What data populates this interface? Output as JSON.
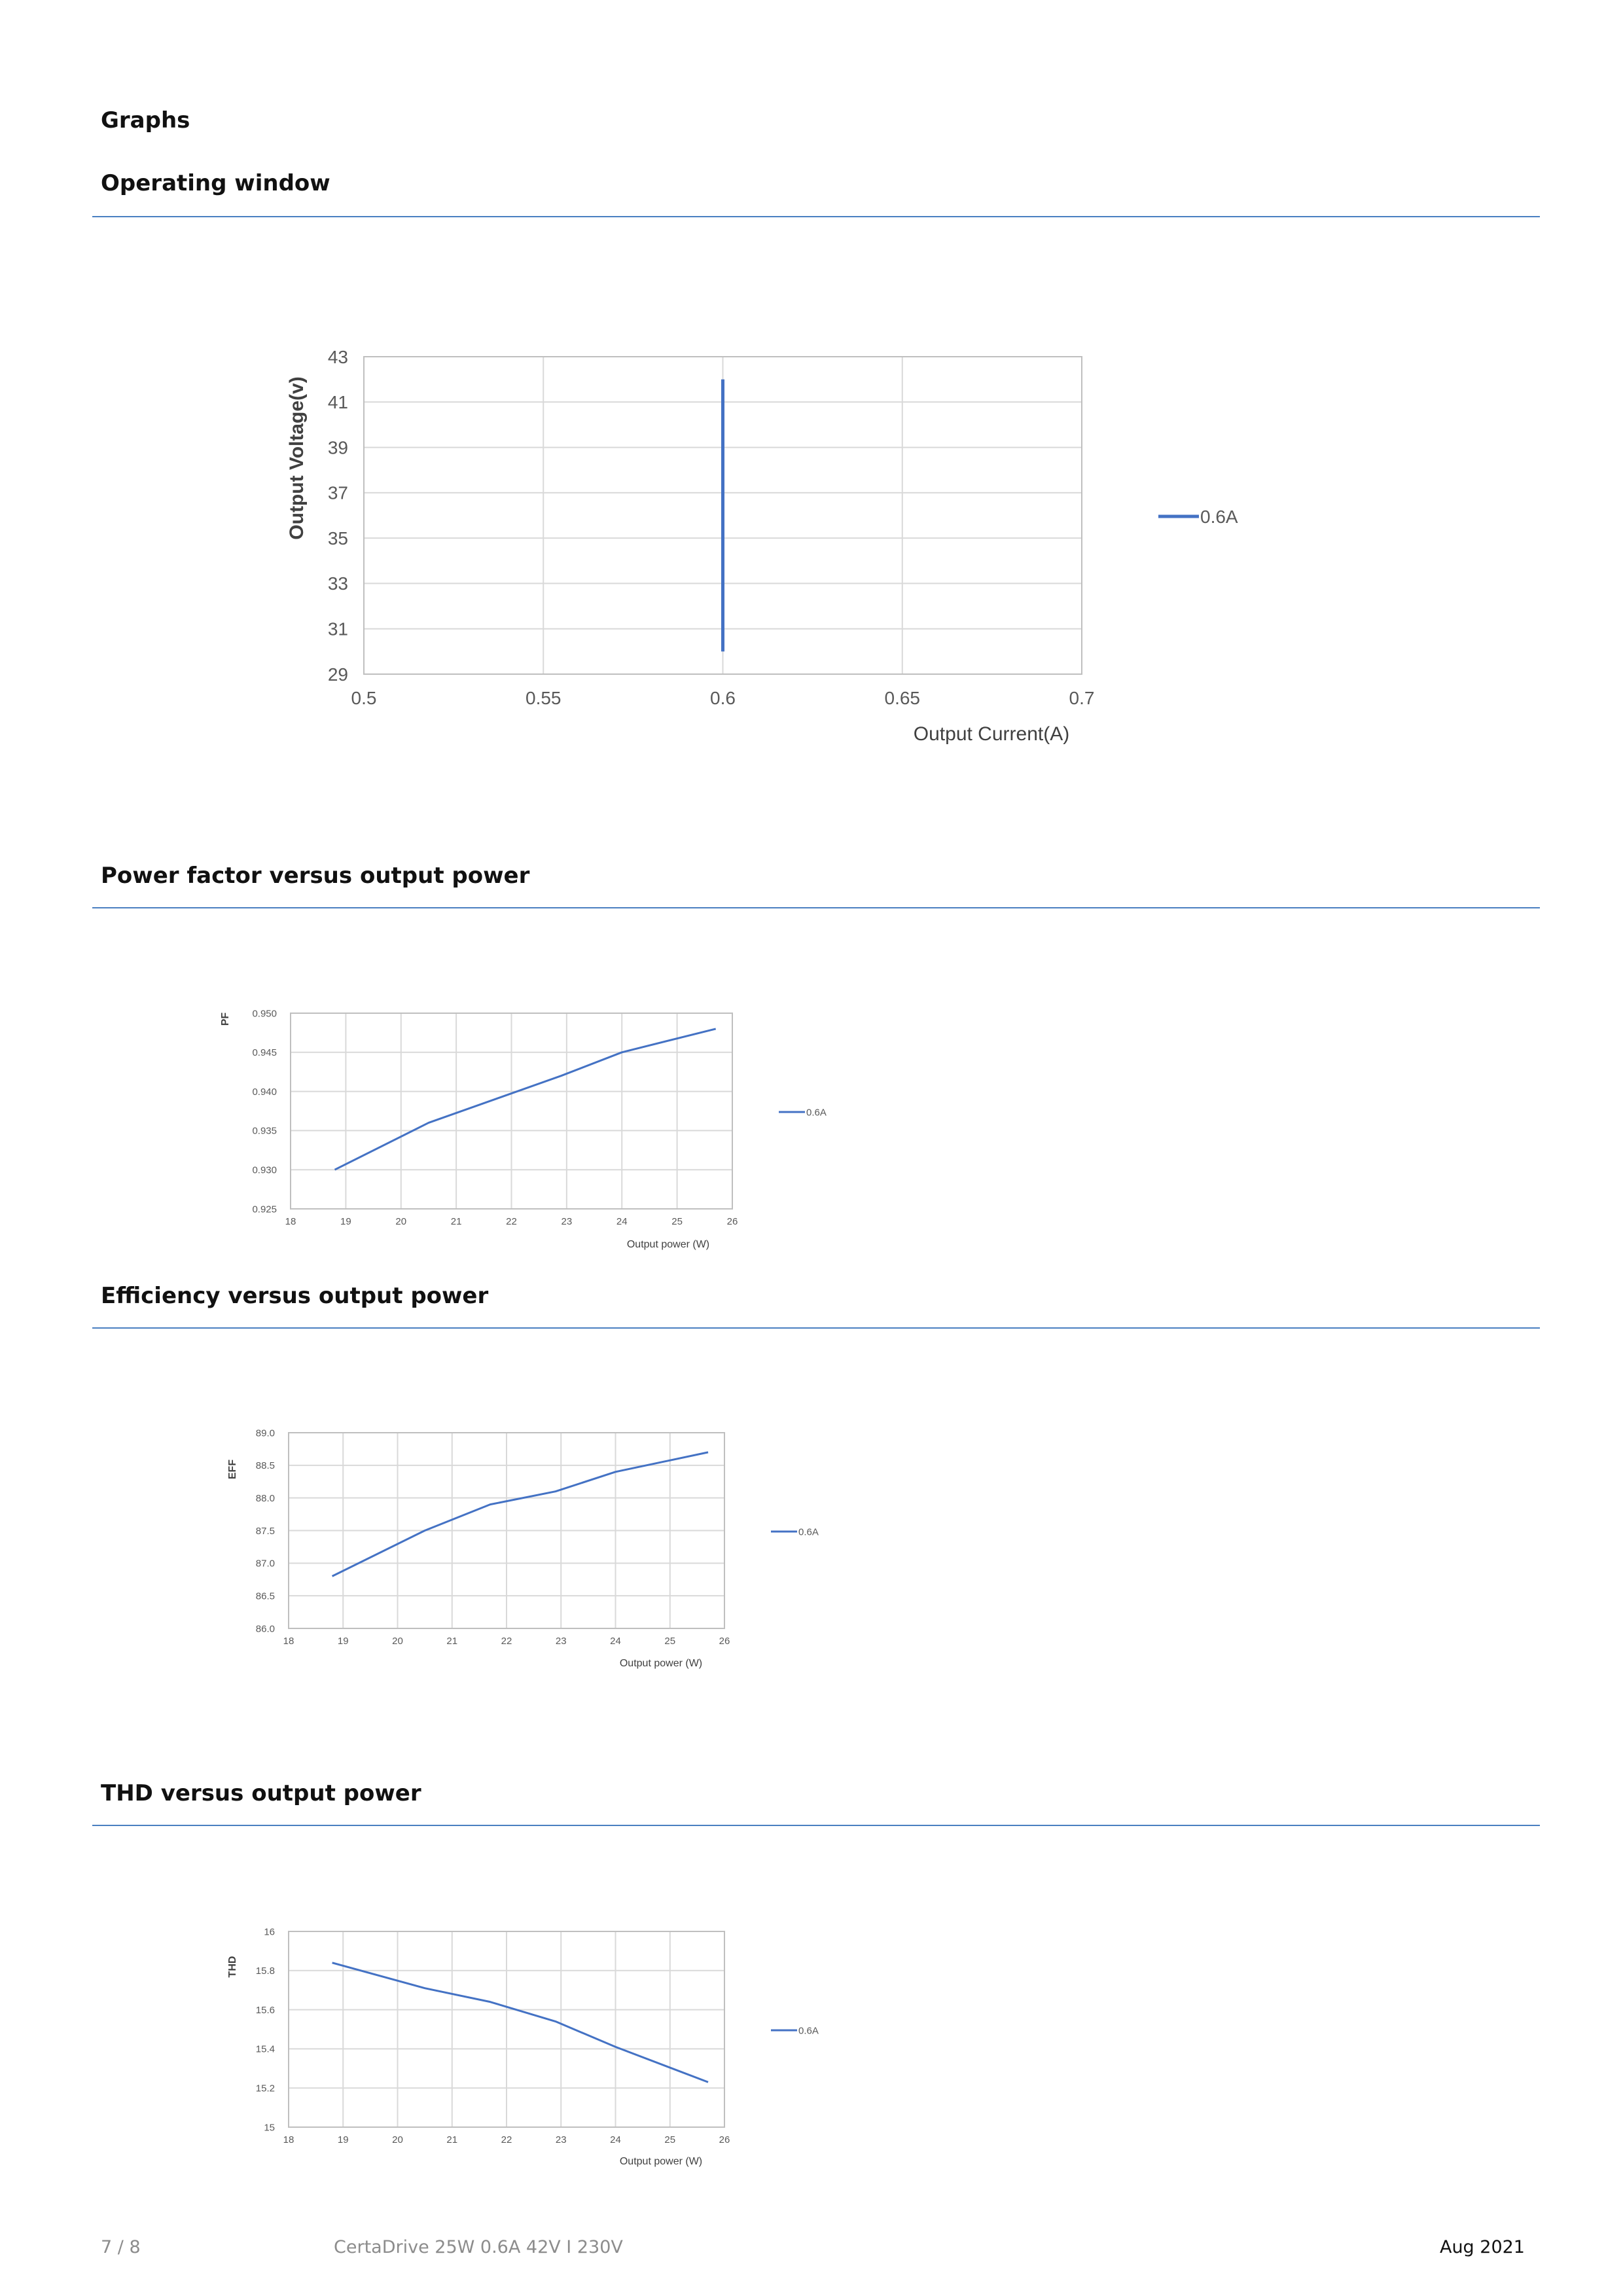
{
  "page": {
    "section_title": "Graphs",
    "headings": {
      "operating_window": "Operating window",
      "power_factor": "Power factor versus output power",
      "efficiency": "Efficiency versus output power",
      "thd": "THD versus output power"
    }
  },
  "colors": {
    "series": "#4472c4",
    "rule": "#4a7fc1"
  },
  "chart_data": [
    {
      "type": "line",
      "title": "",
      "xlabel": "Output Current(A)",
      "ylabel": "Output Voltage(v)",
      "xlim": [
        0.5,
        0.7
      ],
      "ylim": [
        29,
        43
      ],
      "x_ticks": [
        "0.5",
        "0.55",
        "0.6",
        "0.65",
        "0.7"
      ],
      "y_ticks": [
        "29",
        "31",
        "33",
        "35",
        "37",
        "39",
        "41",
        "43"
      ],
      "grid": true,
      "legend": "right",
      "series": [
        {
          "name": "0.6A",
          "x": [
            0.6,
            0.6
          ],
          "y": [
            30,
            42
          ]
        }
      ]
    },
    {
      "type": "line",
      "title": "",
      "xlabel": "Output power (W)",
      "ylabel": "PF",
      "xlim": [
        18,
        26
      ],
      "ylim": [
        0.925,
        0.95
      ],
      "x_ticks": [
        "18",
        "19",
        "20",
        "21",
        "22",
        "23",
        "24",
        "25",
        "26"
      ],
      "y_ticks": [
        "0.925",
        "0.930",
        "0.935",
        "0.940",
        "0.945",
        "0.950"
      ],
      "grid": true,
      "legend": "right",
      "series": [
        {
          "name": "0.6A",
          "x": [
            18.8,
            20.5,
            21.7,
            22.9,
            24.0,
            25.7
          ],
          "y": [
            0.93,
            0.936,
            0.939,
            0.942,
            0.945,
            0.948
          ]
        }
      ]
    },
    {
      "type": "line",
      "title": "",
      "xlabel": "Output power (W)",
      "ylabel": "EFF",
      "xlim": [
        18,
        26
      ],
      "ylim": [
        86.0,
        89.0
      ],
      "x_ticks": [
        "18",
        "19",
        "20",
        "21",
        "22",
        "23",
        "24",
        "25",
        "26"
      ],
      "y_ticks": [
        "86.0",
        "86.5",
        "87.0",
        "87.5",
        "88.0",
        "88.5",
        "89.0"
      ],
      "grid": true,
      "legend": "right",
      "series": [
        {
          "name": "0.6A",
          "x": [
            18.8,
            20.5,
            21.7,
            22.9,
            24.0,
            25.7
          ],
          "y": [
            86.8,
            87.5,
            87.9,
            88.1,
            88.4,
            88.7
          ]
        }
      ]
    },
    {
      "type": "line",
      "title": "",
      "xlabel": "Output power (W)",
      "ylabel": "THD",
      "xlim": [
        18,
        26
      ],
      "ylim": [
        15,
        16
      ],
      "x_ticks": [
        "18",
        "19",
        "20",
        "21",
        "22",
        "23",
        "24",
        "25",
        "26"
      ],
      "y_ticks": [
        "15",
        "15.2",
        "15.4",
        "15.6",
        "15.8",
        "16"
      ],
      "grid": true,
      "legend": "right",
      "series": [
        {
          "name": "0.6A",
          "x": [
            18.8,
            20.5,
            21.7,
            22.9,
            24.0,
            25.7
          ],
          "y": [
            15.84,
            15.71,
            15.64,
            15.54,
            15.41,
            15.23
          ]
        }
      ]
    }
  ],
  "footer": {
    "page_number": "7 / 8",
    "product": "CertaDrive 25W 0.6A 42V I 230V",
    "date": "Aug 2021"
  }
}
